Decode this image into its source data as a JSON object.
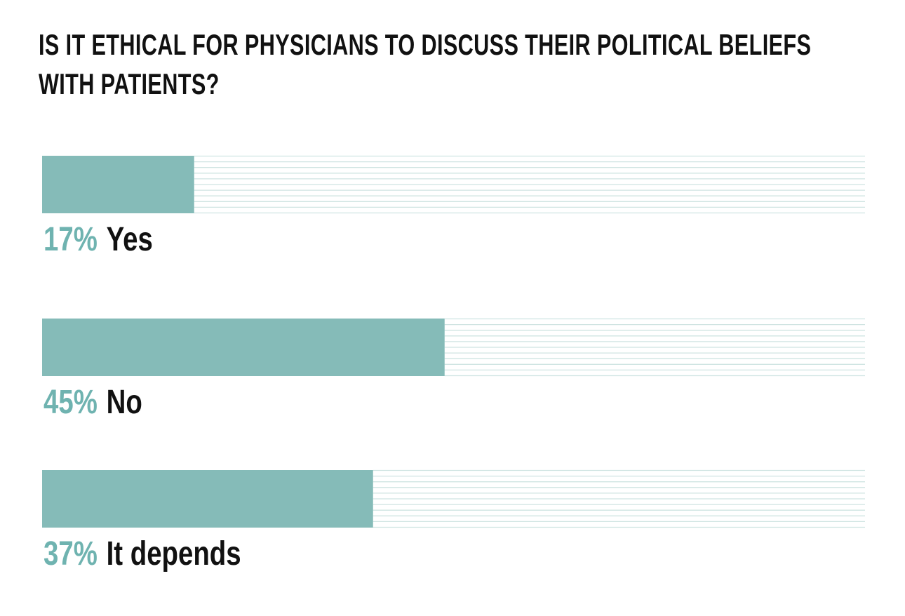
{
  "chart_data": {
    "type": "hbar",
    "title": "IS IT ETHICAL FOR PHYSICIANS TO DISCUSS THEIR POLITICAL BELIEFS WITH PATIENTS?",
    "categories": [
      "Yes",
      "No",
      "It depends"
    ],
    "values": [
      17,
      45,
      37
    ],
    "value_labels": [
      "17%",
      "45%",
      "37%"
    ],
    "color": "#85bbb8",
    "label_color": "#6fb3b0",
    "xlim": [
      0,
      92
    ]
  }
}
